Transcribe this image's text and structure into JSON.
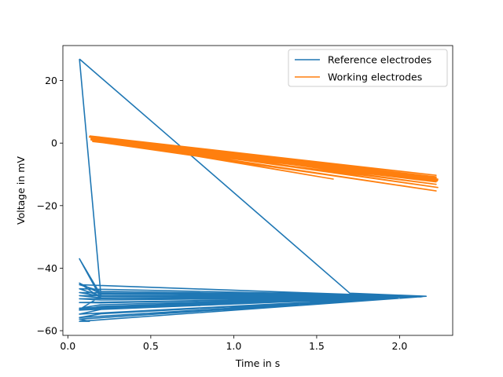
{
  "chart_data": {
    "type": "line",
    "title": "",
    "xlabel": "Time in s",
    "ylabel": "Voltage in mV",
    "xlim": [
      -0.03,
      2.32
    ],
    "ylim": [
      -61.5,
      31.2
    ],
    "xticks": [
      0.0,
      0.5,
      1.0,
      1.5,
      2.0
    ],
    "xtick_labels": [
      "0.0",
      "0.5",
      "1.0",
      "1.5",
      "2.0"
    ],
    "yticks": [
      -60,
      -40,
      -20,
      0,
      20
    ],
    "ytick_labels": [
      "−60",
      "−40",
      "−20",
      "0",
      "20"
    ],
    "grid": false,
    "legend": "top-right",
    "colors": {
      "reference": "#1f77b4",
      "working": "#ff7f0e"
    },
    "series": [
      {
        "name": "Reference electrodes",
        "color": "#1f77b4",
        "x": [
          0.07,
          0.7,
          1.7,
          2.16,
          1.78,
          0.2,
          0.07,
          0.2,
          0.07,
          0.2,
          2.12,
          0.07,
          0.2,
          2.15,
          0.07,
          0.2,
          2.1,
          0.07,
          0.2,
          2.14,
          0.07,
          0.2,
          2.1,
          0.07,
          0.2,
          2.13,
          0.07,
          0.2,
          2.15,
          0.07,
          0.2,
          2.1,
          0.07,
          0.2,
          2.16,
          0.07,
          0.2,
          2.1,
          0.07,
          0.2,
          2.14,
          0.07,
          0.13,
          0.07,
          2.14,
          0.07,
          0.2,
          0.07
        ],
        "y": [
          26.9,
          -2.0,
          -48.0,
          -49.0,
          -49.3,
          -48.7,
          -37.0,
          -49.6,
          -44.8,
          -48.2,
          -49.2,
          -45.3,
          -47.4,
          -49.0,
          -46.6,
          -48.9,
          -49.1,
          -47.8,
          -49.0,
          -49.0,
          -48.8,
          -49.5,
          -49.1,
          -49.8,
          -50.2,
          -49.2,
          -51.0,
          -51.1,
          -49.0,
          -52.8,
          -51.7,
          -49.1,
          -53.4,
          -52.2,
          -49.0,
          -54.7,
          -53.2,
          -49.1,
          -55.8,
          -54.6,
          -49.1,
          -56.3,
          -57.0,
          -57.0,
          -49.1,
          -53.2,
          -49.0,
          26.9
        ]
      },
      {
        "name": "Working electrodes",
        "color": "#ff7f0e",
        "x": [
          0.13,
          2.22,
          0.14,
          2.22,
          0.14,
          2.22,
          0.15,
          2.23,
          0.13,
          2.23,
          0.14,
          2.21,
          0.15,
          2.22,
          0.14,
          1.78,
          0.15,
          2.22,
          0.13,
          2.23,
          0.14,
          2.22,
          0.15,
          2.21,
          0.14,
          1.6,
          0.14,
          2.22,
          0.15,
          2.23
        ],
        "y": [
          2.3,
          -10.3,
          2.1,
          -10.8,
          1.8,
          -11.2,
          1.5,
          -11.5,
          1.9,
          -11.8,
          1.2,
          -12.0,
          0.8,
          -12.4,
          1.0,
          -11.8,
          0.6,
          -13.2,
          2.0,
          -14.2,
          1.4,
          -15.3,
          0.9,
          -11.3,
          1.5,
          -11.5,
          1.7,
          -10.9,
          0.5,
          -12.1
        ]
      }
    ]
  }
}
